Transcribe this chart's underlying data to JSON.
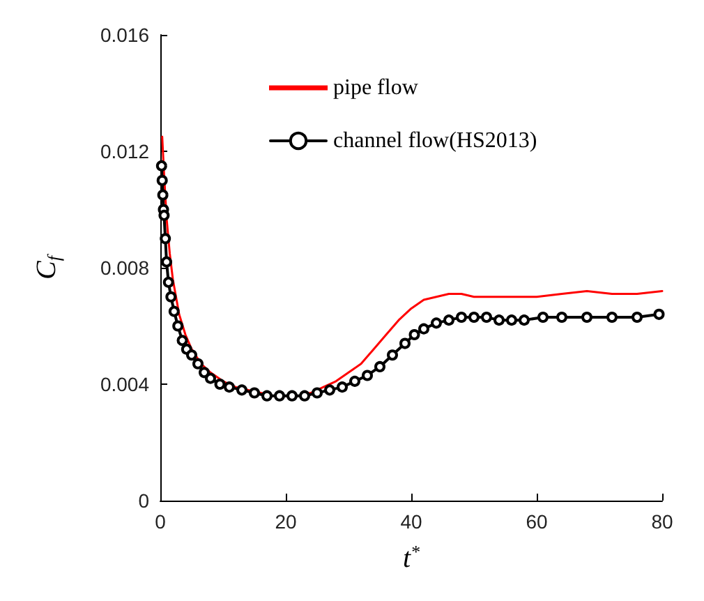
{
  "chart_data": {
    "type": "line",
    "xlabel": "t$^{*}$",
    "ylabel": "C$_{f}$",
    "xlim": [
      0,
      80
    ],
    "xticks": [
      0,
      20,
      40,
      60,
      80
    ],
    "ylim": [
      0,
      0.016
    ],
    "yticks": [
      0,
      0.004,
      0.008,
      0.012,
      0.016
    ],
    "grid": false,
    "legend": "top",
    "series": [
      {
        "name": "pipe flow",
        "color": "#ff0000",
        "marker": "none",
        "x": [
          0.3,
          0.6,
          1,
          1.5,
          2,
          3,
          4,
          5,
          6.5,
          8,
          10,
          12,
          14,
          16,
          18,
          20,
          22,
          24,
          26,
          28,
          30,
          32,
          34,
          36,
          38,
          40,
          42,
          44,
          46,
          48,
          50,
          52,
          56,
          60,
          64,
          68,
          72,
          76,
          80
        ],
        "values": [
          0.0125,
          0.0112,
          0.0097,
          0.0085,
          0.0076,
          0.0064,
          0.0057,
          0.0052,
          0.0047,
          0.0044,
          0.0041,
          0.0039,
          0.0038,
          0.0037,
          0.0036,
          0.0036,
          0.0036,
          0.0037,
          0.0039,
          0.0041,
          0.0044,
          0.0047,
          0.0052,
          0.0057,
          0.0062,
          0.0066,
          0.0069,
          0.007,
          0.0071,
          0.0071,
          0.007,
          0.007,
          0.007,
          0.007,
          0.0071,
          0.0072,
          0.0071,
          0.0071,
          0.0072
        ]
      },
      {
        "name": "channel flow(HS2013)",
        "color": "#000000",
        "marker": "circle",
        "x": [
          0.2,
          0.3,
          0.4,
          0.5,
          0.6,
          0.8,
          1,
          1.3,
          1.7,
          2.2,
          2.8,
          3.5,
          4.2,
          5,
          6,
          7,
          8,
          9.5,
          11,
          13,
          15,
          17,
          19,
          21,
          23,
          25,
          27,
          29,
          31,
          33,
          35,
          37,
          39,
          40.5,
          42,
          44,
          46,
          48,
          50,
          52,
          54,
          56,
          58,
          61,
          64,
          68,
          72,
          76,
          79.5
        ],
        "values": [
          0.0115,
          0.011,
          0.0105,
          0.01,
          0.0098,
          0.009,
          0.0082,
          0.0075,
          0.007,
          0.0065,
          0.006,
          0.0055,
          0.0052,
          0.005,
          0.0047,
          0.0044,
          0.0042,
          0.004,
          0.0039,
          0.0038,
          0.0037,
          0.0036,
          0.0036,
          0.0036,
          0.0036,
          0.0037,
          0.0038,
          0.0039,
          0.0041,
          0.0043,
          0.0046,
          0.005,
          0.0054,
          0.0057,
          0.0059,
          0.0061,
          0.0062,
          0.0063,
          0.0063,
          0.0063,
          0.0062,
          0.0062,
          0.0062,
          0.0063,
          0.0063,
          0.0063,
          0.0063,
          0.0063,
          0.0064
        ]
      }
    ]
  }
}
